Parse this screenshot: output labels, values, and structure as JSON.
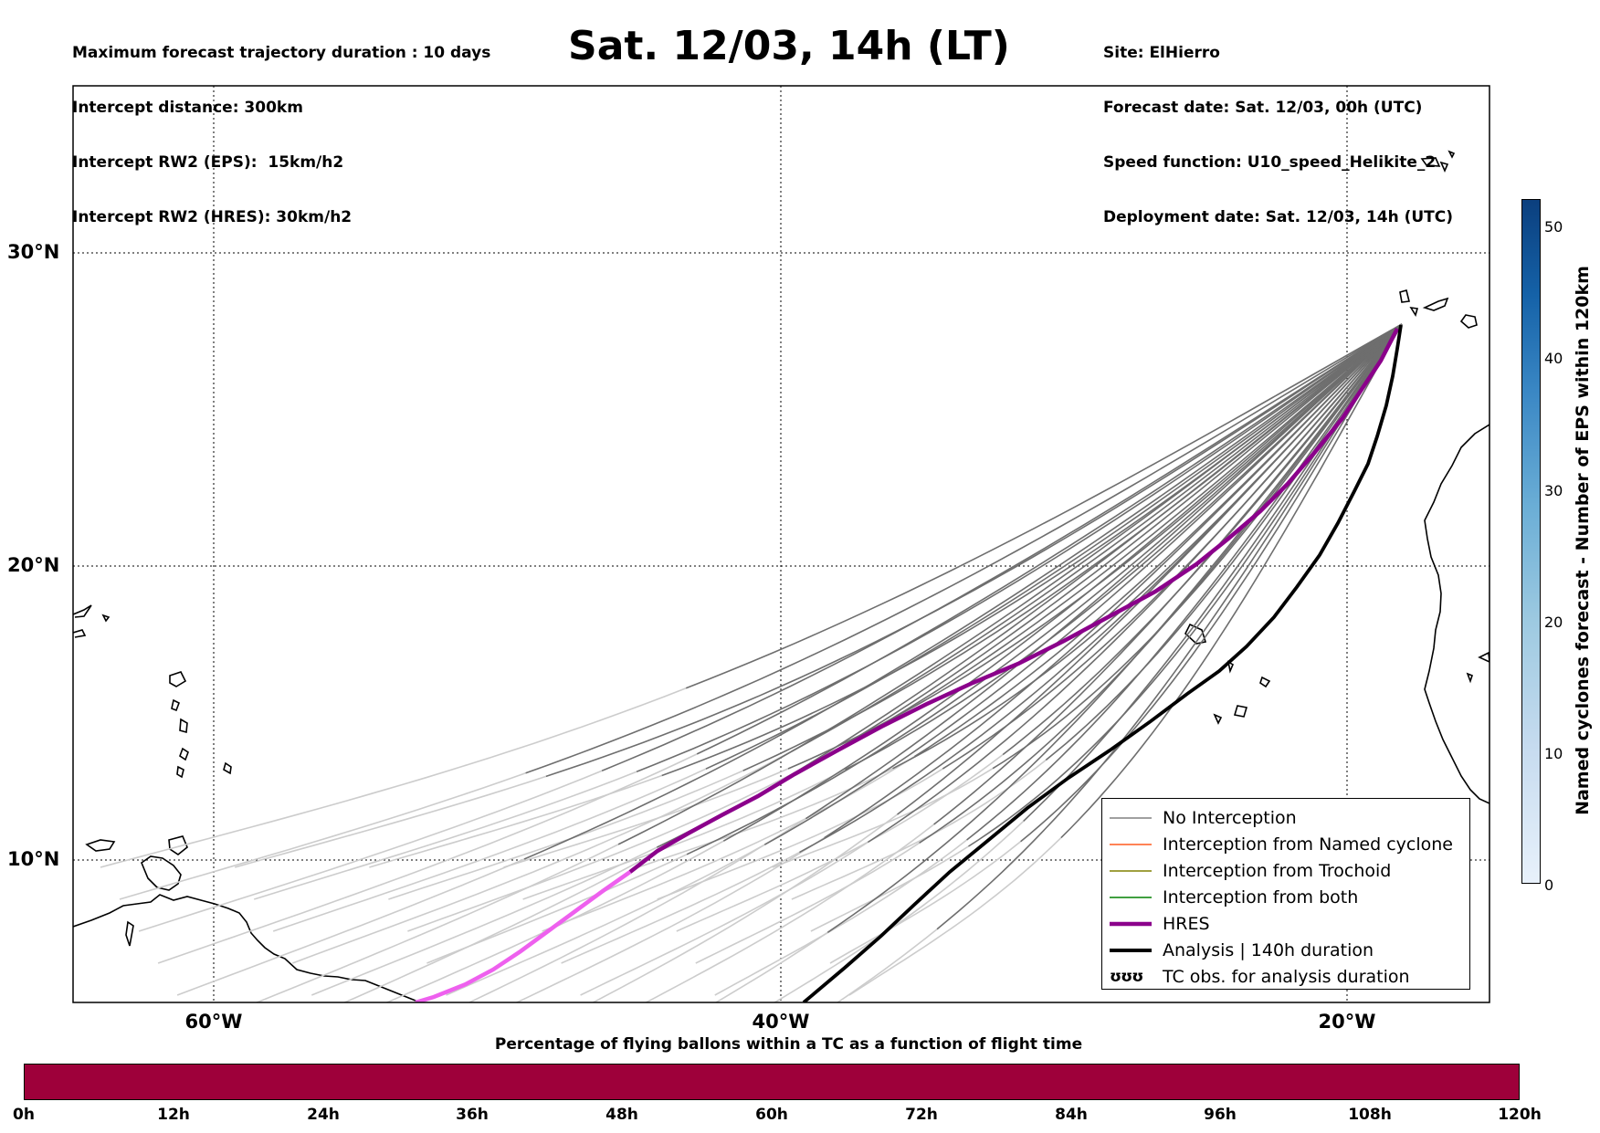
{
  "header": {
    "left_lines": [
      "Maximum forecast trajectory duration : 10 days",
      "Intercept distance: 300km",
      "Intercept RW2 (EPS):  15km/h2",
      "Intercept RW2 (HRES): 30km/h2"
    ],
    "title": "Sat. 12/03, 14h (LT)",
    "right_lines": [
      "Site: ElHierro",
      "Forecast date: Sat. 12/03, 00h (UTC)",
      "Speed function: U10_speed_Helikite_2",
      "Deployment date: Sat. 12/03, 14h (UTC)"
    ]
  },
  "map": {
    "lat_labels": [
      "30°N",
      "20°N",
      "10°N"
    ],
    "lon_labels": [
      "60°W",
      "40°W",
      "20°W"
    ],
    "colors": {
      "no_interception": "#808080",
      "named_cyclone": "#ff5a1f",
      "trochoid": "#808000",
      "both": "#008000",
      "hres": "#8b008b",
      "hres_early": "#ee60ee",
      "analysis": "#000000",
      "early_trajectory": "#cccccc"
    }
  },
  "legend": {
    "items": [
      {
        "label": "No Interception",
        "kind": "no_interception"
      },
      {
        "label": "Interception from Named cyclone",
        "kind": "named_cyclone"
      },
      {
        "label": "Interception from Trochoid",
        "kind": "trochoid"
      },
      {
        "label": "Interception from both",
        "kind": "both"
      },
      {
        "label": "HRES",
        "kind": "hres"
      },
      {
        "label": "Analysis | 140h duration",
        "kind": "analysis"
      },
      {
        "label": "TC obs. for analysis duration",
        "kind": "tc_obs",
        "symbol": "ʊʊʊ"
      }
    ]
  },
  "right_colorbar": {
    "label": "Named cyclones forecast - Number of EPS within 120km",
    "ticks": [
      "0",
      "10",
      "20",
      "30",
      "40",
      "50"
    ],
    "colors": [
      "#e8f1fb",
      "#9ecae1",
      "#3a87c4",
      "#0b3f7e"
    ]
  },
  "bottom_colorbar": {
    "title": "Percentage of flying ballons within a TC as a function of flight time",
    "ticks": [
      "0h",
      "12h",
      "24h",
      "36h",
      "48h",
      "60h",
      "72h",
      "84h",
      "96h",
      "108h",
      "120h"
    ],
    "fill_color": "#9e003a"
  }
}
